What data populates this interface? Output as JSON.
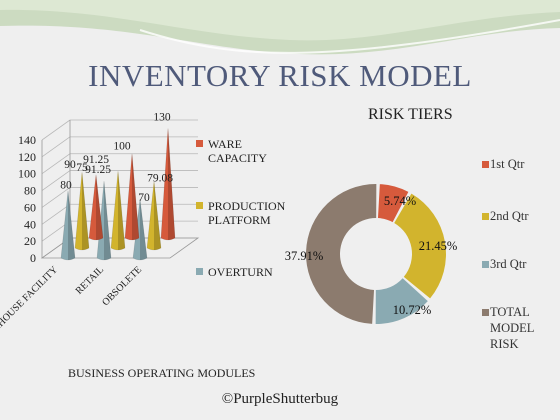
{
  "page": {
    "title": "INVENTORY RISK MODEL",
    "credit": "©PurpleShutterbug",
    "colors": {
      "background": "#efefef",
      "title": "#4f5a7a",
      "swoosh": "#c6d7b9"
    }
  },
  "chart_data": [
    {
      "type": "bar",
      "style": "3d-cone",
      "categories": [
        "WAREHOUSE FACILITY",
        "RETAIL",
        "OBSOLETE"
      ],
      "category_labels": [
        "AREHOUSE FACILITY",
        "RETAIL",
        "OBSOLETE"
      ],
      "series": [
        {
          "name": "WARE CAPACITY",
          "values": [
            75,
            100,
            130
          ],
          "color": "#d65a3c"
        },
        {
          "name": "PRODUCTION PLATFORM",
          "values": [
            90,
            91.25,
            79.08
          ],
          "color": "#d2b42d"
        },
        {
          "name": "OVERTURN",
          "values": [
            80,
            91.25,
            70
          ],
          "color": "#8aaab2"
        }
      ],
      "data_labels": [
        "75",
        "90",
        "100",
        "80",
        "91.25",
        "91.25",
        "130",
        "79.08",
        "70"
      ],
      "yticks": [
        "0",
        "20",
        "40",
        "60",
        "80",
        "100",
        "120",
        "140"
      ],
      "ylim": [
        0,
        140
      ],
      "xlabel": "BUSINESS OPERATING MODULES",
      "ylabel": "",
      "legend": "right",
      "grid": true
    },
    {
      "type": "pie",
      "style": "doughnut",
      "title": "RISK TIERS",
      "labels": [
        "1st Qtr",
        "2nd Qtr",
        "3rd Qtr",
        "TOTAL MODEL RISK"
      ],
      "legend_labels": [
        "1st Qtr",
        "2nd Qtr",
        "3rd Qtr",
        "TOTAL\nMODEL\nRISK"
      ],
      "values": [
        5.74,
        21.45,
        10.72,
        37.91
      ],
      "value_labels": [
        "5.74%",
        "21.45%",
        "10.72%",
        "37.91%"
      ],
      "colors": [
        "#d65a3c",
        "#d2b42d",
        "#8aaab2",
        "#8c7b6e"
      ],
      "legend": "right"
    }
  ]
}
